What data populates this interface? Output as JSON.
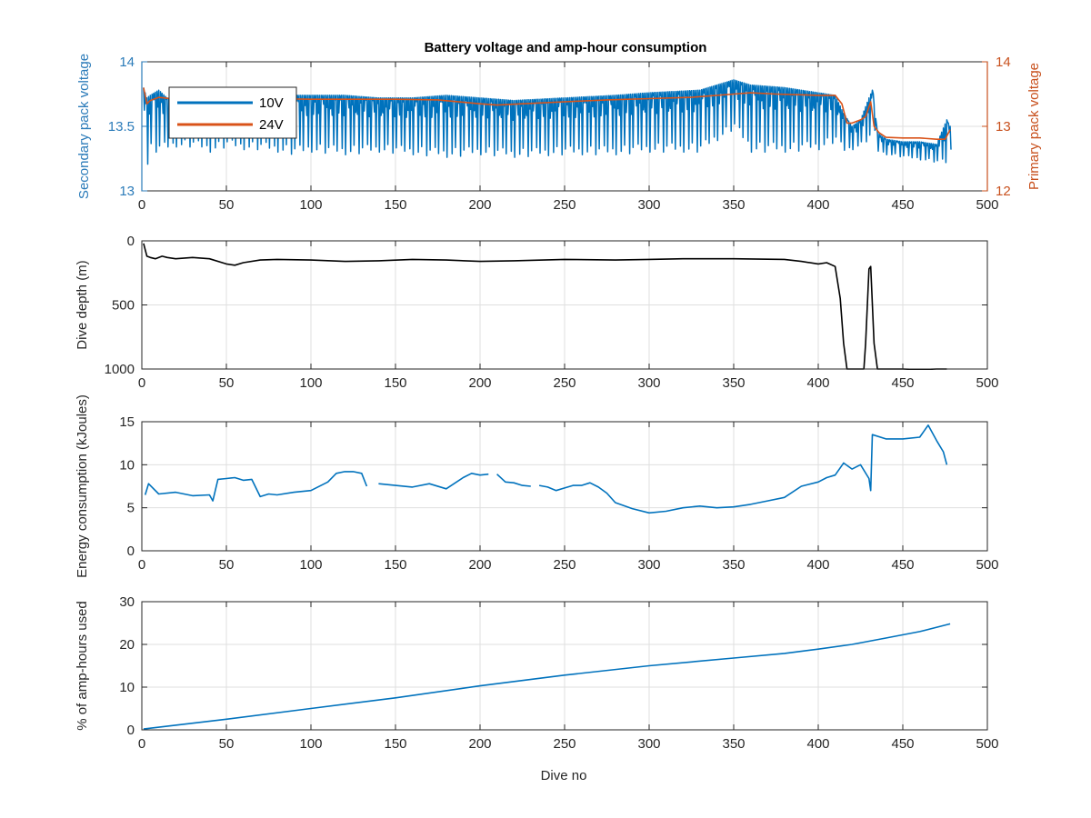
{
  "figure": {
    "title": "Battery voltage and amp-hour consumption",
    "xlabel": "Dive no"
  },
  "chart_data": [
    {
      "type": "line",
      "title": "Battery voltage and amp-hour consumption",
      "xlim": [
        0,
        500
      ],
      "xticks": [
        0,
        50,
        100,
        150,
        200,
        250,
        300,
        350,
        400,
        450,
        500
      ],
      "grid": true,
      "legend": {
        "placement": "top-left",
        "entries": [
          "10V",
          "24V"
        ]
      },
      "left_axis": {
        "ylabel": "Secondary pack voltage",
        "ylim": [
          13,
          14
        ],
        "yticks": [
          13,
          13.5,
          14
        ],
        "color": "#2b7bb9"
      },
      "right_axis": {
        "ylabel": "Primary pack voltage",
        "ylim": [
          12,
          14
        ],
        "yticks": [
          12,
          13,
          14
        ],
        "color": "#c8511e"
      },
      "series": [
        {
          "name": "10V",
          "axis": "left",
          "color": "#0072bd",
          "x": [
            1,
            3,
            5,
            10,
            15,
            20,
            30,
            40,
            50,
            60,
            70,
            80,
            90,
            100,
            120,
            140,
            160,
            180,
            200,
            220,
            250,
            280,
            300,
            330,
            350,
            360,
            380,
            400,
            410,
            415,
            420,
            425,
            430,
            432,
            435,
            440,
            450,
            460,
            470,
            476,
            478
          ],
          "upper": [
            13.8,
            13.72,
            13.74,
            13.78,
            13.72,
            13.7,
            13.72,
            13.74,
            13.74,
            13.72,
            13.72,
            13.74,
            13.74,
            13.74,
            13.74,
            13.72,
            13.72,
            13.74,
            13.72,
            13.7,
            13.72,
            13.74,
            13.76,
            13.78,
            13.86,
            13.82,
            13.8,
            13.76,
            13.74,
            13.6,
            13.5,
            13.55,
            13.72,
            13.78,
            13.45,
            13.4,
            13.38,
            13.38,
            13.36,
            13.55,
            13.5
          ],
          "lower": [
            13.3,
            13.18,
            13.3,
            13.3,
            13.32,
            13.34,
            13.34,
            13.3,
            13.34,
            13.32,
            13.32,
            13.3,
            13.28,
            13.3,
            13.28,
            13.3,
            13.28,
            13.26,
            13.28,
            13.26,
            13.28,
            13.28,
            13.3,
            13.3,
            13.48,
            13.3,
            13.3,
            13.32,
            13.38,
            13.3,
            13.32,
            13.35,
            13.4,
            13.5,
            13.3,
            13.28,
            13.26,
            13.24,
            13.22,
            13.2,
            13.3
          ]
        },
        {
          "name": "24V",
          "axis": "right",
          "color": "#d95319",
          "x": [
            1,
            3,
            5,
            10,
            20,
            30,
            40,
            50,
            75,
            100,
            125,
            150,
            175,
            200,
            210,
            225,
            250,
            275,
            300,
            325,
            350,
            360,
            375,
            400,
            410,
            414,
            417,
            420,
            425,
            428,
            431,
            433,
            436,
            440,
            450,
            460,
            470,
            475,
            478
          ],
          "y": [
            13.6,
            13.35,
            13.4,
            13.45,
            13.42,
            13.42,
            13.42,
            13.42,
            13.43,
            13.42,
            13.42,
            13.42,
            13.41,
            13.35,
            13.33,
            13.35,
            13.38,
            13.41,
            13.43,
            13.45,
            13.5,
            13.52,
            13.5,
            13.48,
            13.48,
            13.35,
            13.05,
            13.05,
            13.1,
            13.15,
            13.38,
            13.0,
            12.9,
            12.83,
            12.82,
            12.82,
            12.8,
            12.8,
            12.95
          ]
        }
      ]
    },
    {
      "type": "line",
      "xlim": [
        0,
        500
      ],
      "ylim": [
        0,
        1000
      ],
      "y_reversed": true,
      "xticks": [
        0,
        50,
        100,
        150,
        200,
        250,
        300,
        350,
        400,
        450,
        500
      ],
      "yticks": [
        0,
        500,
        1000
      ],
      "ylabel": "Dive depth (m)",
      "grid": true,
      "series": [
        {
          "color": "#000000",
          "x": [
            1,
            3,
            5,
            8,
            12,
            15,
            20,
            30,
            40,
            50,
            55,
            60,
            70,
            80,
            100,
            120,
            140,
            160,
            180,
            200,
            220,
            250,
            280,
            300,
            320,
            350,
            380,
            390,
            400,
            405,
            410,
            413,
            415,
            417,
            427,
            428,
            430,
            431,
            433,
            435,
            440,
            450,
            460,
            470,
            476
          ],
          "y": [
            20,
            120,
            130,
            140,
            120,
            130,
            140,
            130,
            140,
            180,
            190,
            170,
            150,
            145,
            150,
            160,
            155,
            145,
            150,
            160,
            155,
            145,
            150,
            145,
            140,
            140,
            145,
            160,
            180,
            170,
            200,
            450,
            800,
            1000,
            1000,
            800,
            220,
            200,
            800,
            1000,
            1000,
            1000,
            1005,
            1000,
            1000
          ]
        }
      ]
    },
    {
      "type": "line",
      "xlim": [
        0,
        500
      ],
      "ylim": [
        0,
        15
      ],
      "xticks": [
        0,
        50,
        100,
        150,
        200,
        250,
        300,
        350,
        400,
        450,
        500
      ],
      "yticks": [
        0,
        5,
        10,
        15
      ],
      "ylabel": "Energy consumption (kJoules)",
      "grid": true,
      "series": [
        {
          "color": "#0072bd",
          "segments": [
            {
              "x": [
                2,
                4,
                10,
                20,
                30,
                40,
                42,
                45,
                50,
                55,
                60,
                65,
                70,
                75,
                80,
                90,
                100,
                110,
                115,
                120,
                125,
                130,
                133
              ],
              "y": [
                6.5,
                7.8,
                6.6,
                6.8,
                6.4,
                6.5,
                5.8,
                8.3,
                8.4,
                8.5,
                8.2,
                8.3,
                6.3,
                6.6,
                6.5,
                6.8,
                7.0,
                8.0,
                9.0,
                9.2,
                9.2,
                9.0,
                7.5
              ]
            },
            {
              "x": [
                140,
                150,
                160,
                170,
                180,
                190,
                195,
                200,
                205
              ],
              "y": [
                7.8,
                7.6,
                7.4,
                7.8,
                7.2,
                8.5,
                9.0,
                8.8,
                8.9
              ]
            },
            {
              "x": [
                210,
                215,
                220,
                225,
                230
              ],
              "y": [
                8.9,
                8.0,
                7.9,
                7.6,
                7.5
              ]
            },
            {
              "x": [
                235,
                240,
                245,
                250,
                255,
                260,
                265,
                270,
                275,
                280,
                290,
                300,
                310,
                320,
                330,
                340,
                350,
                360,
                370,
                380,
                390,
                400,
                405,
                410,
                415,
                420,
                425,
                430,
                431,
                432,
                440,
                450,
                460,
                465,
                470,
                474,
                476
              ],
              "y": [
                7.6,
                7.4,
                7.0,
                7.3,
                7.6,
                7.6,
                7.9,
                7.4,
                6.7,
                5.6,
                4.9,
                4.4,
                4.6,
                5.0,
                5.2,
                5.0,
                5.1,
                5.4,
                5.8,
                6.2,
                7.5,
                8.0,
                8.5,
                8.8,
                10.2,
                9.5,
                10.0,
                8.4,
                7.0,
                13.5,
                13.0,
                13.0,
                13.2,
                14.6,
                12.8,
                11.5,
                10.0
              ]
            }
          ]
        }
      ]
    },
    {
      "type": "line",
      "xlim": [
        0,
        500
      ],
      "ylim": [
        0,
        30
      ],
      "xticks": [
        0,
        50,
        100,
        150,
        200,
        250,
        300,
        350,
        400,
        450,
        500
      ],
      "yticks": [
        0,
        10,
        20,
        30
      ],
      "xlabel": "Dive no",
      "ylabel": "% of amp-hours used",
      "grid": true,
      "series": [
        {
          "color": "#0072bd",
          "x": [
            1,
            50,
            100,
            150,
            200,
            250,
            300,
            350,
            380,
            400,
            420,
            440,
            460,
            478
          ],
          "y": [
            0.2,
            2.5,
            5.0,
            7.5,
            10.3,
            12.8,
            15.0,
            16.8,
            17.9,
            18.9,
            20.0,
            21.5,
            23.0,
            24.8
          ]
        }
      ]
    }
  ]
}
